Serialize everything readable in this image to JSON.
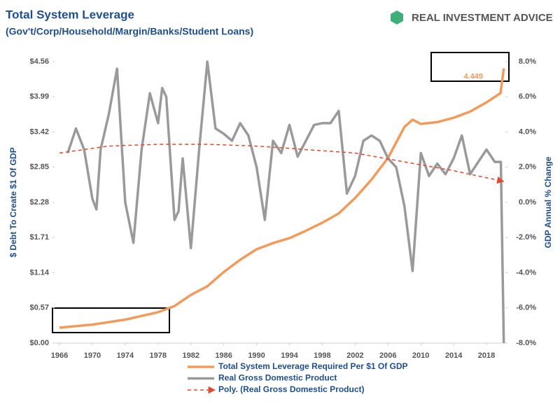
{
  "brand": "REAL INVESTMENT ADVICE",
  "chart_data": {
    "type": "line",
    "title": "Total System Leverage",
    "subtitle": "(Gov't/Corp/Household/Margin/Banks/Student Loans)",
    "y_label": "$ Debt To Create $1 Of GDP",
    "y2_label": "GDP Annual % Change",
    "xlim": [
      1965.4,
      2020.3
    ],
    "xticks": [
      1966,
      1970,
      1974,
      1978,
      1982,
      1986,
      1990,
      1994,
      1998,
      2002,
      2006,
      2010,
      2014,
      2018
    ],
    "ylim": [
      0,
      4.56
    ],
    "yticks": [
      {
        "value": 0,
        "label": "$0.00"
      },
      {
        "value": 0.57,
        "label": "$0.57"
      },
      {
        "value": 1.14,
        "label": "$1.14"
      },
      {
        "value": 1.71,
        "label": "$1.71"
      },
      {
        "value": 2.28,
        "label": "$2.28"
      },
      {
        "value": 2.85,
        "label": "$2.85"
      },
      {
        "value": 3.42,
        "label": "$3.42"
      },
      {
        "value": 3.99,
        "label": "$3.99"
      },
      {
        "value": 4.56,
        "label": "$4.56"
      }
    ],
    "y2lim": [
      -8,
      8
    ],
    "y2ticks": [
      {
        "value": -8,
        "label": "-8.0%"
      },
      {
        "value": -6,
        "label": "-6.0%"
      },
      {
        "value": -4,
        "label": "-4.0%"
      },
      {
        "value": -2,
        "label": "-2.0%"
      },
      {
        "value": 0,
        "label": "0.0%"
      },
      {
        "value": 2,
        "label": "2.0%"
      },
      {
        "value": 4,
        "label": "4.0%"
      },
      {
        "value": 6,
        "label": "6.0%"
      },
      {
        "value": 8,
        "label": "8.0%"
      }
    ],
    "series": [
      {
        "name": "Total System Leverage Required Per $1 Of GDP",
        "color": "#f29a5c",
        "dash": false,
        "x": [
          1966,
          1970,
          1974,
          1978,
          1980,
          1982,
          1984,
          1986,
          1988,
          1990,
          1992,
          1994,
          1996,
          1998,
          2000,
          2002,
          2004,
          2006,
          2008,
          2009,
          2010,
          2012,
          2014,
          2016,
          2018,
          2019.7,
          2020.1
        ],
        "values": [
          0.25,
          0.3,
          0.38,
          0.5,
          0.6,
          0.78,
          0.92,
          1.15,
          1.35,
          1.52,
          1.62,
          1.7,
          1.82,
          1.95,
          2.1,
          2.35,
          2.65,
          3.0,
          3.5,
          3.62,
          3.55,
          3.58,
          3.65,
          3.75,
          3.9,
          4.05,
          4.449
        ]
      },
      {
        "name": "Real Gross Domestic Product",
        "color": "#9a9a9a",
        "dash": false,
        "axis": "y2",
        "x": [
          1967,
          1968,
          1969,
          1970,
          1970.5,
          1971,
          1972,
          1973,
          1974,
          1975,
          1976,
          1977,
          1978,
          1978.5,
          1979,
          1980,
          1980.5,
          1981,
          1982,
          1983,
          1984,
          1985,
          1986,
          1987,
          1988,
          1989,
          1990,
          1991,
          1992,
          1993,
          1994,
          1995,
          1996,
          1997,
          1998,
          1999,
          2000,
          2001,
          2002,
          2003,
          2004,
          2005,
          2006,
          2007,
          2008,
          2009,
          2010,
          2011,
          2012,
          2013,
          2014,
          2015,
          2016,
          2017,
          2018,
          2019,
          2019.75,
          2020.1
        ],
        "values": [
          2.8,
          4.2,
          3.0,
          0.2,
          -0.4,
          3.0,
          5.0,
          7.6,
          0,
          -2.3,
          3.0,
          6.2,
          4.5,
          6.5,
          6.0,
          -1.0,
          -0.5,
          2.5,
          -2.6,
          3.0,
          8.0,
          4.2,
          3.9,
          3.5,
          4.5,
          3.8,
          2.0,
          -1.0,
          3.5,
          2.8,
          4.4,
          2.6,
          3.5,
          4.4,
          4.5,
          4.5,
          5.2,
          0.5,
          1.5,
          3.5,
          3.8,
          3.5,
          2.5,
          2.0,
          -0.2,
          -3.9,
          2.8,
          1.5,
          2.2,
          1.6,
          2.5,
          3.8,
          1.6,
          2.3,
          3.0,
          2.3,
          2.3,
          -8.0
        ]
      },
      {
        "name": "Poly. (Real Gross Domestic Product)",
        "color": "#e04a30",
        "dash": true,
        "axis": "y2",
        "x": [
          1966,
          1972,
          1978,
          1984,
          1990,
          1996,
          2002,
          2008,
          2014,
          2020
        ],
        "values": [
          2.8,
          3.2,
          3.3,
          3.3,
          3.2,
          3.0,
          2.8,
          2.3,
          1.8,
          1.2
        ]
      }
    ]
  }
}
